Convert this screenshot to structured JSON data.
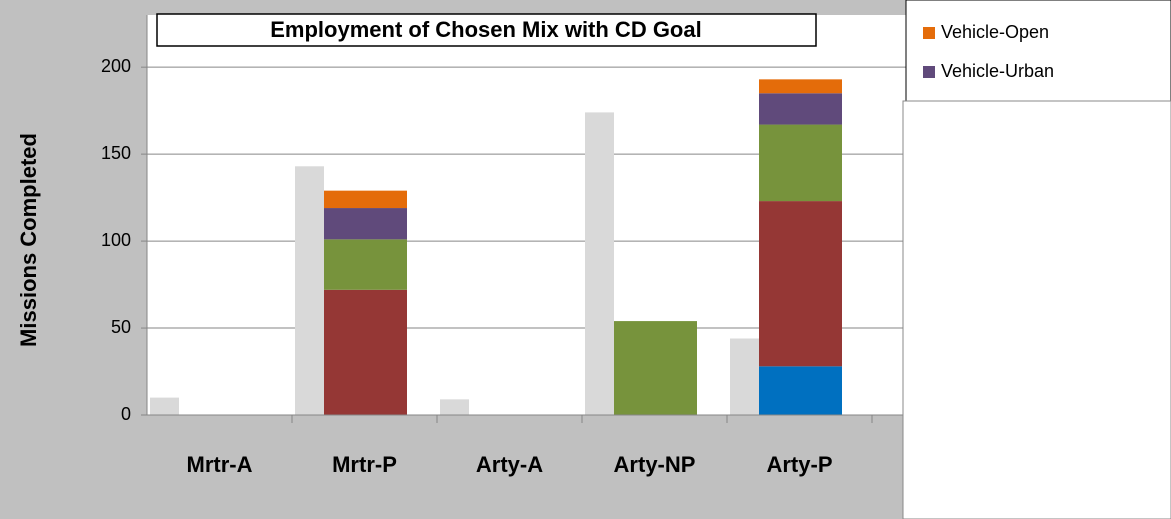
{
  "chart_data": {
    "type": "bar",
    "title": "Employment of Chosen Mix with CD Goal",
    "y_label": "Missions Completed",
    "categories": [
      "Mrtr-A",
      "Mrtr-P",
      "Arty-A",
      "Arty-NP",
      "Arty-P"
    ],
    "reference": {
      "color": "#d9d9d9",
      "values": [
        10,
        143,
        9,
        174,
        44
      ]
    },
    "series": [
      {
        "color": "#0070c0",
        "values": [
          null,
          null,
          null,
          null,
          28
        ]
      },
      {
        "color": "#953735",
        "values": [
          null,
          72,
          null,
          null,
          95
        ]
      },
      {
        "color": "#77933c",
        "values": [
          null,
          29,
          null,
          54,
          44
        ]
      },
      {
        "name": "Vehicle-Urban",
        "color": "#604a7b",
        "values": [
          null,
          18,
          null,
          null,
          18
        ]
      },
      {
        "name": "Vehicle-Open",
        "color": "#e46c0a",
        "values": [
          null,
          10,
          null,
          null,
          8
        ]
      }
    ],
    "ylim": [
      0,
      230
    ],
    "yticks": [
      0,
      50,
      100,
      150,
      200
    ],
    "grid": true,
    "legend": "top-right"
  }
}
